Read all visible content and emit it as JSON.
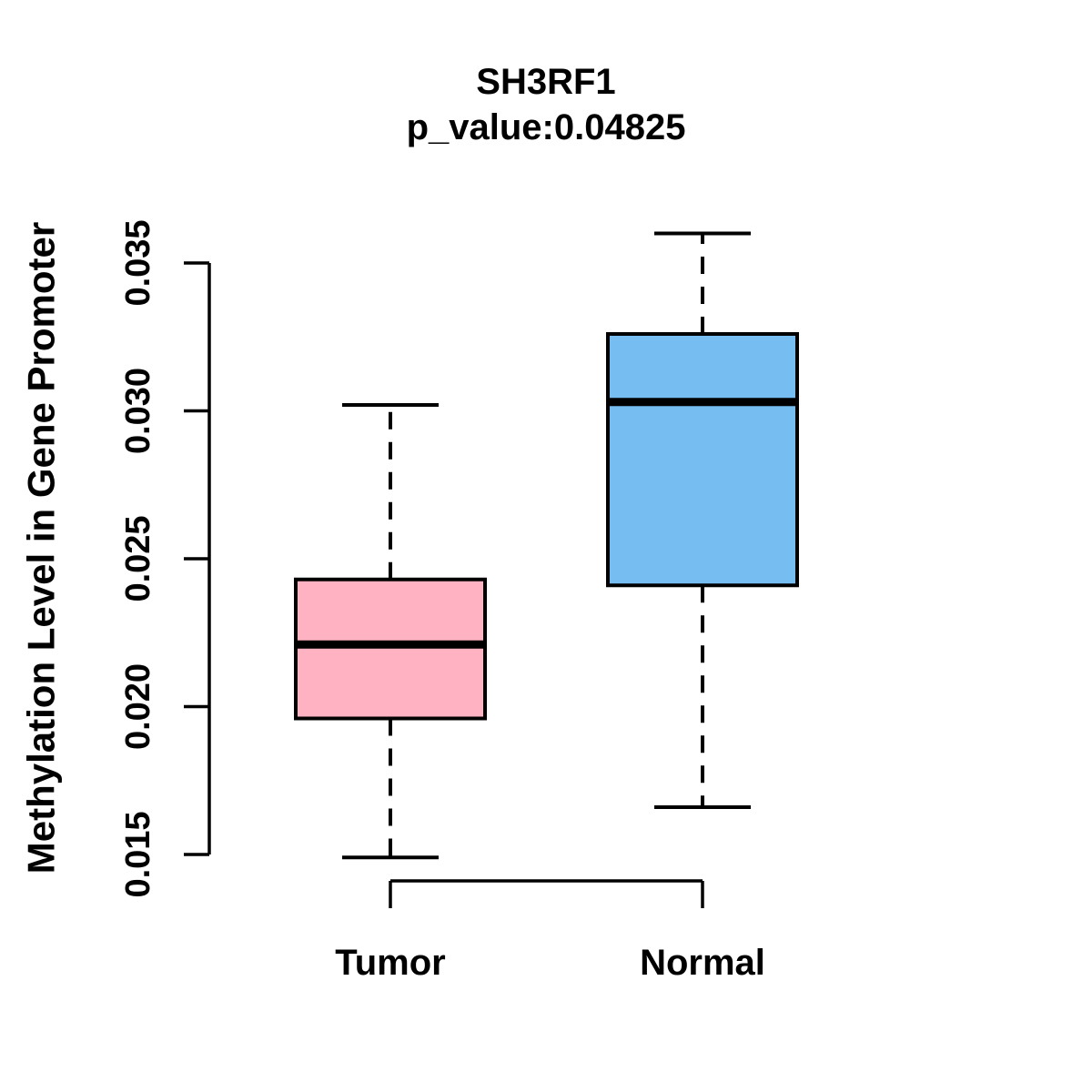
{
  "title": "SH3RF1",
  "subtitle": "p_value:0.04825",
  "chart_data": {
    "type": "boxplot",
    "title": "SH3RF1",
    "subtitle": "p_value:0.04825",
    "xlabel": "",
    "ylabel": "Methylation Level in Gene Promoter",
    "ylim": [
      0.015,
      0.035
    ],
    "yticks": [
      0.015,
      0.02,
      0.025,
      0.03,
      0.035
    ],
    "ytick_labels": [
      "0.015",
      "0.020",
      "0.025",
      "0.030",
      "0.035"
    ],
    "grid": "off",
    "legend": "none",
    "categories": [
      "Tumor",
      "Normal"
    ],
    "series": [
      {
        "name": "Tumor",
        "fill_color": "#FFB2C1",
        "whisker_low": 0.0149,
        "q1": 0.0196,
        "median": 0.0221,
        "q3": 0.0243,
        "whisker_high": 0.0302
      },
      {
        "name": "Normal",
        "fill_color": "#76BEF2",
        "whisker_low": 0.0166,
        "q1": 0.0241,
        "median": 0.0303,
        "q3": 0.0326,
        "whisker_high": 0.036
      }
    ],
    "box_border_color": "#000000",
    "median_color": "#000000",
    "whisker_style": "dashed",
    "axis_color": "#000000"
  }
}
